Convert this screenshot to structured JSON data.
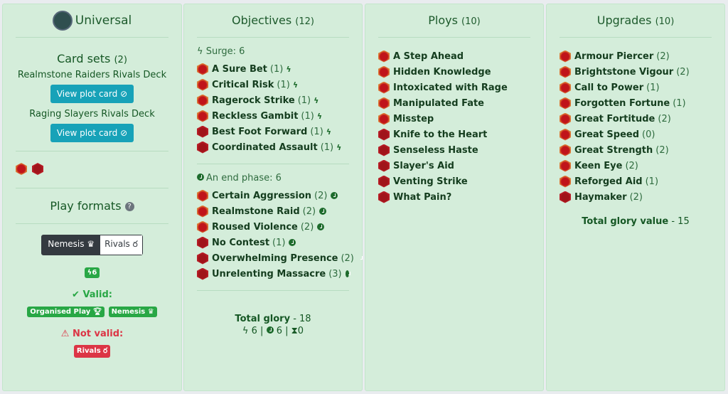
{
  "universal": {
    "title": "Universal",
    "logo_icon": "universal-faction-icon",
    "card_sets_label": "Card sets",
    "card_sets_count": "(2)",
    "sets": [
      {
        "name": "Realmstone Raiders Rivals Deck",
        "button": "View plot card"
      },
      {
        "name": "Raging Slayers Rivals Deck",
        "button": "View plot card"
      }
    ],
    "play_formats_label": "Play formats",
    "format_toggle": [
      {
        "label": "Nemesis",
        "icon": "crown-icon",
        "active": true
      },
      {
        "label": "Rivals",
        "icon": "medal-icon",
        "active": false
      }
    ],
    "surge_badge": "6",
    "valid_label": "Valid:",
    "valid_badges": [
      "Organised Play",
      "Nemesis"
    ],
    "not_valid_label": "Not valid:",
    "not_valid_badges": [
      "Rivals"
    ]
  },
  "objectives": {
    "title": "Objectives",
    "count": "(12)",
    "surge_label": "Surge: 6",
    "surge": [
      {
        "name": "A Sure Bet",
        "glory": "(1)",
        "set": "a"
      },
      {
        "name": "Critical Risk",
        "glory": "(1)",
        "set": "a"
      },
      {
        "name": "Ragerock Strike",
        "glory": "(1)",
        "set": "a"
      },
      {
        "name": "Reckless Gambit",
        "glory": "(1)",
        "set": "a"
      },
      {
        "name": "Best Foot Forward",
        "glory": "(1)",
        "set": "b"
      },
      {
        "name": "Coordinated Assault",
        "glory": "(1)",
        "set": "b"
      }
    ],
    "end_label": "An end phase: 6",
    "end": [
      {
        "name": "Certain Aggression",
        "glory": "(2)",
        "set": "a"
      },
      {
        "name": "Realmstone Raid",
        "glory": "(2)",
        "set": "a"
      },
      {
        "name": "Roused Violence",
        "glory": "(2)",
        "set": "a"
      },
      {
        "name": "No Contest",
        "glory": "(1)",
        "set": "b"
      },
      {
        "name": "Overwhelming Presence",
        "glory": "(2)",
        "set": "b"
      },
      {
        "name": "Unrelenting Massacre",
        "glory": "(3)",
        "set": "b"
      }
    ],
    "total_label": "Total glory",
    "total_value": "- 18",
    "summary": {
      "surge": "6",
      "end": "6",
      "third": "0"
    }
  },
  "ploys": {
    "title": "Ploys",
    "count": "(10)",
    "items": [
      {
        "name": "A Step Ahead",
        "set": "a"
      },
      {
        "name": "Hidden Knowledge",
        "set": "a"
      },
      {
        "name": "Intoxicated with Rage",
        "set": "a"
      },
      {
        "name": "Manipulated Fate",
        "set": "a"
      },
      {
        "name": "Misstep",
        "set": "a"
      },
      {
        "name": "Knife to the Heart",
        "set": "b"
      },
      {
        "name": "Senseless Haste",
        "set": "b"
      },
      {
        "name": "Slayer's Aid",
        "set": "b"
      },
      {
        "name": "Venting Strike",
        "set": "b"
      },
      {
        "name": "What Pain?",
        "set": "b"
      }
    ]
  },
  "upgrades": {
    "title": "Upgrades",
    "count": "(10)",
    "items": [
      {
        "name": "Armour Piercer",
        "glory": "(2)",
        "set": "a"
      },
      {
        "name": "Brightstone Vigour",
        "glory": "(2)",
        "set": "a"
      },
      {
        "name": "Call to Power",
        "glory": "(1)",
        "set": "a"
      },
      {
        "name": "Forgotten Fortune",
        "glory": "(1)",
        "set": "a"
      },
      {
        "name": "Great Fortitude",
        "glory": "(2)",
        "set": "a"
      },
      {
        "name": "Great Speed",
        "glory": "(0)",
        "set": "a"
      },
      {
        "name": "Great Strength",
        "glory": "(2)",
        "set": "a"
      },
      {
        "name": "Keen Eye",
        "glory": "(2)",
        "set": "a"
      },
      {
        "name": "Reforged Aid",
        "glory": "(1)",
        "set": "a"
      },
      {
        "name": "Haymaker",
        "glory": "(2)",
        "set": "b"
      }
    ],
    "total_label": "Total glory value",
    "total_value": "- 15"
  },
  "colors": {
    "panel": "#d4edda",
    "button": "#17a2b8",
    "valid": "#28a745",
    "invalid": "#dc3545",
    "set_a": "#e38a3a",
    "set_b": "#c0202a"
  }
}
